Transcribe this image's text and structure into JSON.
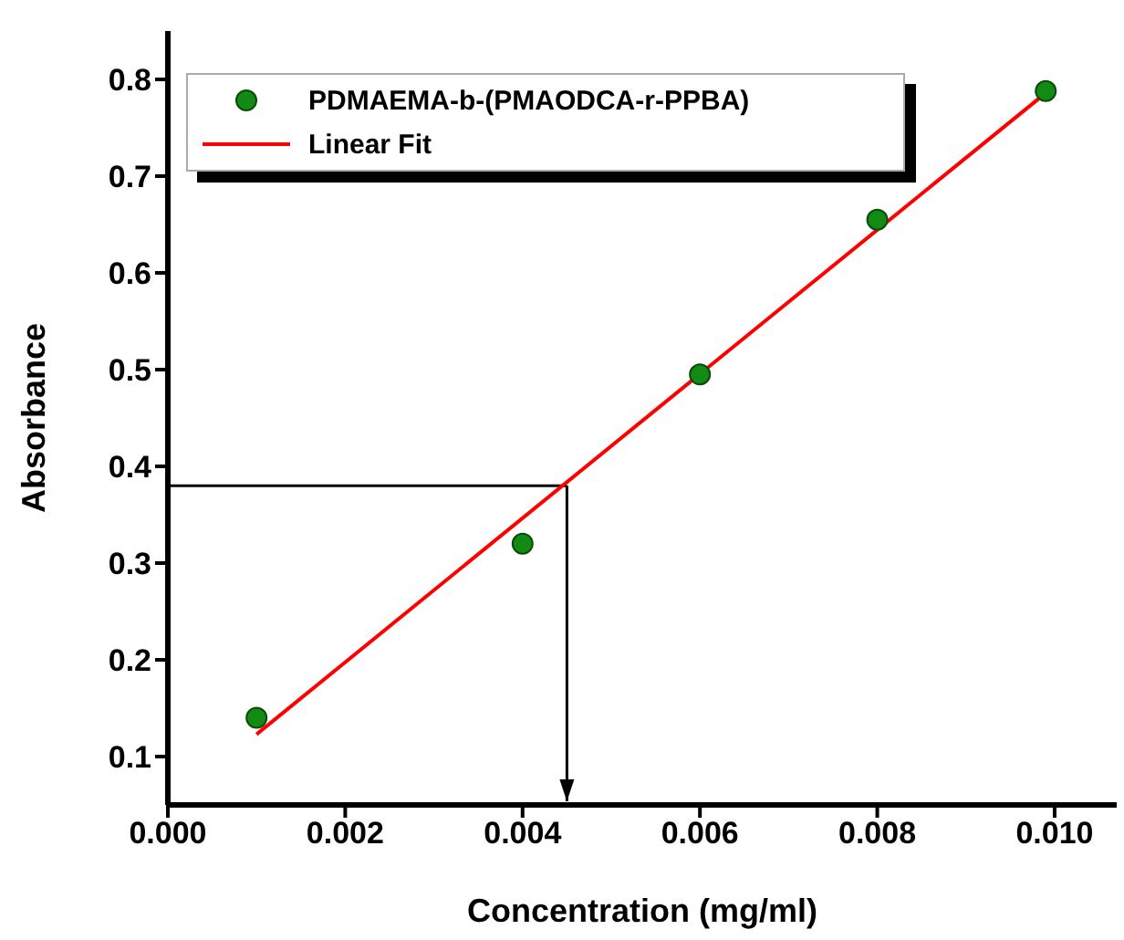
{
  "chart_data": {
    "type": "scatter",
    "xlabel": "Concentration (mg/ml)",
    "ylabel": "Absorbance",
    "xlim": [
      0,
      0.0107
    ],
    "ylim": [
      0.05,
      0.85
    ],
    "xticks": [
      {
        "value": 0,
        "label": "0.000"
      },
      {
        "value": 0.002,
        "label": "0.002"
      },
      {
        "value": 0.004,
        "label": "0.004"
      },
      {
        "value": 0.006,
        "label": "0.006"
      },
      {
        "value": 0.008,
        "label": "0.008"
      },
      {
        "value": 0.01,
        "label": "0.010"
      }
    ],
    "yticks": [
      0.1,
      0.2,
      0.3,
      0.4,
      0.5,
      0.6,
      0.7,
      0.8
    ],
    "series": [
      {
        "name": "PDMAEMA-b-(PMAODCA-r-PPBA)",
        "marker": "circle",
        "color": "#138a13",
        "x": [
          0.001,
          0.004,
          0.006,
          0.008,
          0.0099
        ],
        "values": [
          0.14,
          0.32,
          0.495,
          0.655,
          0.788
        ]
      },
      {
        "name": "Linear Fit",
        "type": "line",
        "color": "#ff0000",
        "x": [
          0.001,
          0.0099
        ],
        "values": [
          0.123,
          0.786
        ]
      }
    ],
    "ref_lines": [
      {
        "axis": "y",
        "value": 0.38,
        "color": "#000000"
      },
      {
        "axis": "x",
        "value": 0.0045,
        "color": "#000000"
      }
    ],
    "legend": "top left",
    "grid": false
  }
}
